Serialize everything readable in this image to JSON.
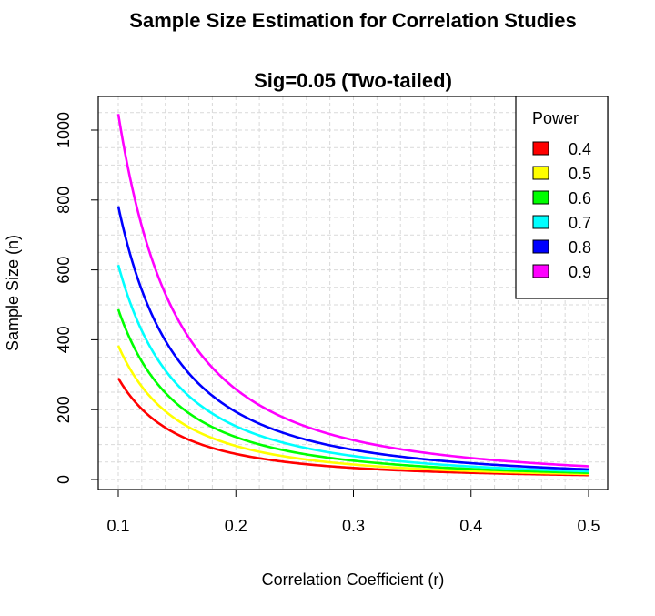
{
  "chart_data": {
    "type": "line",
    "title": "Sample Size Estimation for Correlation Studies",
    "subtitle": "Sig=0.05 (Two-tailed)",
    "xlabel": "Correlation Coefficient (r)",
    "ylabel": "Sample Size (n)",
    "xlim": [
      0.1,
      0.5
    ],
    "ylim": [
      0,
      1050
    ],
    "x_ticks": [
      "0.1",
      "0.2",
      "0.3",
      "0.4",
      "0.5"
    ],
    "y_ticks": [
      "0",
      "200",
      "400",
      "600",
      "800",
      "1000"
    ],
    "grid": true,
    "legend": {
      "title": "Power",
      "position": "top-right"
    },
    "x": [
      0.1,
      0.15,
      0.2,
      0.25,
      0.3,
      0.35,
      0.4,
      0.45,
      0.5
    ],
    "series": [
      {
        "name": "0.4",
        "color": "#ff0000",
        "values": [
          290,
          128,
          72,
          45,
          31,
          22,
          17,
          13,
          11
        ]
      },
      {
        "name": "0.5",
        "color": "#ffff00",
        "values": [
          383,
          169,
          94,
          60,
          41,
          30,
          22,
          17,
          14
        ]
      },
      {
        "name": "0.6",
        "color": "#00ff00",
        "values": [
          487,
          215,
          120,
          76,
          52,
          37,
          28,
          22,
          17
        ]
      },
      {
        "name": "0.7",
        "color": "#00ffff",
        "values": [
          614,
          271,
          151,
          95,
          65,
          47,
          35,
          27,
          21
        ]
      },
      {
        "name": "0.8",
        "color": "#0000ff",
        "values": [
          782,
          346,
          193,
          122,
          84,
          60,
          45,
          34,
          27
        ]
      },
      {
        "name": "0.9",
        "color": "#ff00ff",
        "values": [
          1046,
          463,
          258,
          163,
          112,
          80,
          59,
          45,
          36
        ]
      }
    ]
  }
}
